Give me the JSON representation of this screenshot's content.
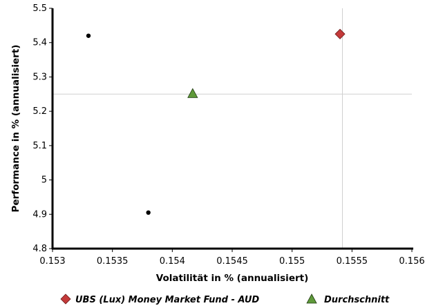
{
  "chart_data": {
    "type": "scatter",
    "xlabel": "Volatilität in % (annualisiert)",
    "ylabel": "Performance in % (annualisiert)",
    "xlim": [
      0.153,
      0.156
    ],
    "ylim": [
      4.8,
      5.5
    ],
    "x_ticks": [
      0.153,
      0.1535,
      0.154,
      0.1545,
      0.155,
      0.1555,
      0.156
    ],
    "x_tick_labels": [
      "0.153",
      "0.1535",
      "0.154",
      "0.1545",
      "0.155",
      "0.1555",
      "0.156"
    ],
    "y_ticks": [
      4.8,
      4.9,
      5,
      5.1,
      5.2,
      5.3,
      5.4,
      5.5
    ],
    "y_tick_labels": [
      "4.8",
      "4.9",
      "5",
      "5.1",
      "5.2",
      "5.3",
      "5.4",
      "5.5"
    ],
    "reference_lines": {
      "x": 0.15542,
      "y": 5.25
    },
    "series": [
      {
        "name": "",
        "marker": "dot",
        "color": "#000000",
        "points": [
          {
            "x": 0.1533,
            "y": 5.42
          },
          {
            "x": 0.1538,
            "y": 4.905
          }
        ]
      },
      {
        "name": "UBS (Lux) Money Market Fund - AUD",
        "marker": "diamond",
        "color": "#c43a3a",
        "points": [
          {
            "x": 0.1554,
            "y": 5.425
          }
        ]
      },
      {
        "name": "Durchschnitt",
        "marker": "triangle",
        "color": "#5f9a3a",
        "points": [
          {
            "x": 0.15417,
            "y": 5.252
          }
        ]
      }
    ],
    "legend": {
      "position": "bottom",
      "items": [
        {
          "label": "UBS (Lux) Money Market Fund - AUD",
          "marker": "diamond",
          "color": "#c43a3a"
        },
        {
          "label": "Durchschnitt",
          "marker": "triangle",
          "color": "#5f9a3a"
        }
      ]
    },
    "grid": false
  }
}
